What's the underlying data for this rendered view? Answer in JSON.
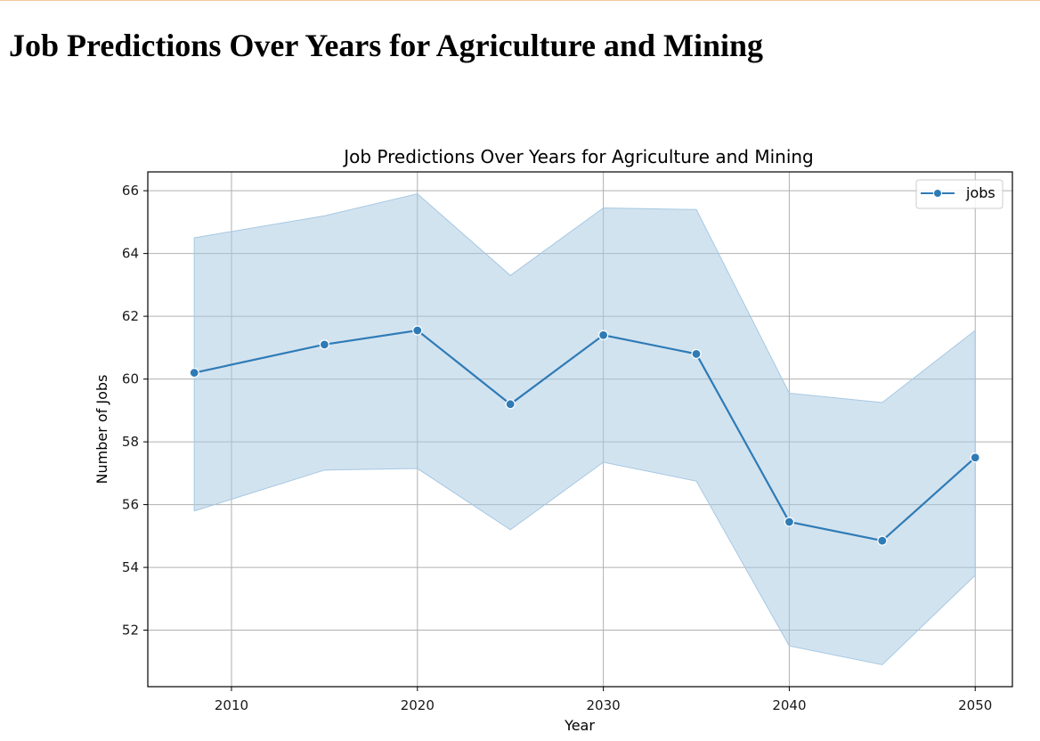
{
  "page": {
    "title": "Job Predictions Over Years for Agriculture and Mining"
  },
  "chart_data": {
    "type": "line",
    "title": "Job Predictions Over Years for Agriculture and Mining",
    "xlabel": "Year",
    "ylabel": "Number of Jobs",
    "xlim": [
      2005.5,
      2052
    ],
    "ylim": [
      50.2,
      66.6
    ],
    "xticks": [
      2010,
      2020,
      2030,
      2040,
      2050
    ],
    "yticks": [
      52,
      54,
      56,
      58,
      60,
      62,
      64,
      66
    ],
    "grid": true,
    "legend_position": "top-right",
    "series": [
      {
        "name": "jobs",
        "color": "#2f7bb6",
        "marker": "circle",
        "x": [
          2008,
          2015,
          2020,
          2025,
          2030,
          2035,
          2040,
          2045,
          2050
        ],
        "y": [
          60.2,
          61.1,
          61.55,
          59.2,
          61.4,
          60.8,
          55.45,
          54.85,
          57.5
        ],
        "band_upper": [
          64.5,
          65.2,
          65.9,
          63.3,
          65.45,
          65.4,
          59.55,
          59.25,
          61.55
        ],
        "band_lower": [
          55.8,
          57.1,
          57.15,
          55.2,
          57.35,
          56.75,
          51.5,
          50.9,
          53.75
        ],
        "band_color": "#a6c8e2"
      }
    ]
  }
}
